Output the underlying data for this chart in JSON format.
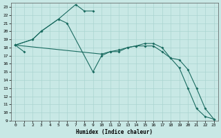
{
  "xlabel": "Humidex (Indice chaleur)",
  "xlim": [
    -0.5,
    23.5
  ],
  "ylim": [
    9,
    23.5
  ],
  "xticks": [
    0,
    1,
    2,
    3,
    4,
    5,
    6,
    7,
    8,
    9,
    10,
    11,
    12,
    13,
    14,
    15,
    16,
    17,
    18,
    19,
    20,
    21,
    22,
    23
  ],
  "yticks": [
    9,
    10,
    11,
    12,
    13,
    14,
    15,
    16,
    17,
    18,
    19,
    20,
    21,
    22,
    23
  ],
  "bg_color": "#c8e8e5",
  "grid_color": "#aad4d0",
  "line_color": "#1a6b60",
  "series": [
    {
      "x": [
        0,
        1
      ],
      "y": [
        18.3,
        17.5
      ]
    },
    {
      "x": [
        0,
        2,
        3,
        5,
        7,
        8,
        9
      ],
      "y": [
        18.3,
        19.0,
        20.0,
        21.5,
        23.3,
        22.5,
        22.5
      ]
    },
    {
      "x": [
        0,
        2,
        3,
        5,
        6,
        9,
        10,
        11,
        12,
        13,
        14,
        15,
        16,
        17,
        18,
        19,
        20,
        21,
        22,
        23
      ],
      "y": [
        18.3,
        19.0,
        20.0,
        21.5,
        21.0,
        15.0,
        17.0,
        17.5,
        17.5,
        18.0,
        18.2,
        18.5,
        18.5,
        18.0,
        16.7,
        15.5,
        13.0,
        10.5,
        9.5,
        9.2
      ]
    },
    {
      "x": [
        0,
        10,
        11,
        12,
        13,
        14,
        15,
        16,
        17,
        18,
        19,
        20,
        21,
        22,
        23
      ],
      "y": [
        18.3,
        17.2,
        17.5,
        17.7,
        18.0,
        18.2,
        18.2,
        18.2,
        17.5,
        16.7,
        16.5,
        15.3,
        13.0,
        10.5,
        9.2
      ]
    }
  ]
}
